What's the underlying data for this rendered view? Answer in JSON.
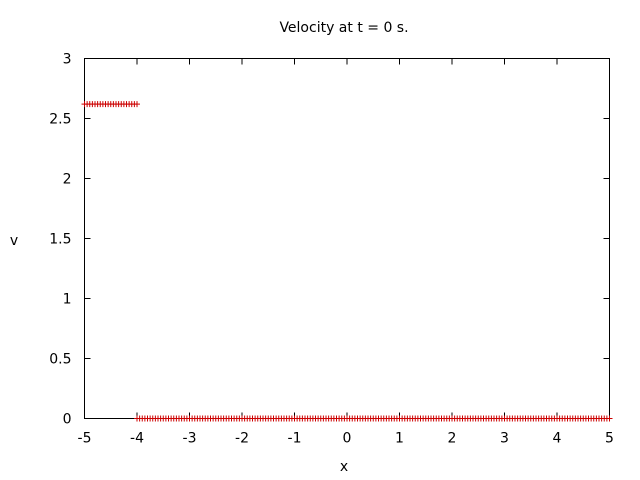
{
  "chart_data": {
    "type": "scatter",
    "title": "Velocity at t = 0 s.",
    "xlabel": "x",
    "ylabel": "v",
    "xlim": [
      -5,
      5
    ],
    "ylim": [
      0,
      3
    ],
    "xticks": [
      -5,
      -4,
      -3,
      -2,
      -1,
      0,
      1,
      2,
      3,
      4,
      5
    ],
    "yticks": [
      0,
      0.5,
      1,
      1.5,
      2,
      2.5,
      3
    ],
    "grid": false,
    "legend": "none",
    "marker": "plus",
    "point_color": "#cc0000",
    "segments": [
      {
        "x_start": -5.0,
        "x_end": -4.0,
        "v": 2.62
      },
      {
        "x_start": -4.0,
        "x_end": 5.0,
        "v": 0.0
      }
    ],
    "point_spacing": 0.05
  }
}
